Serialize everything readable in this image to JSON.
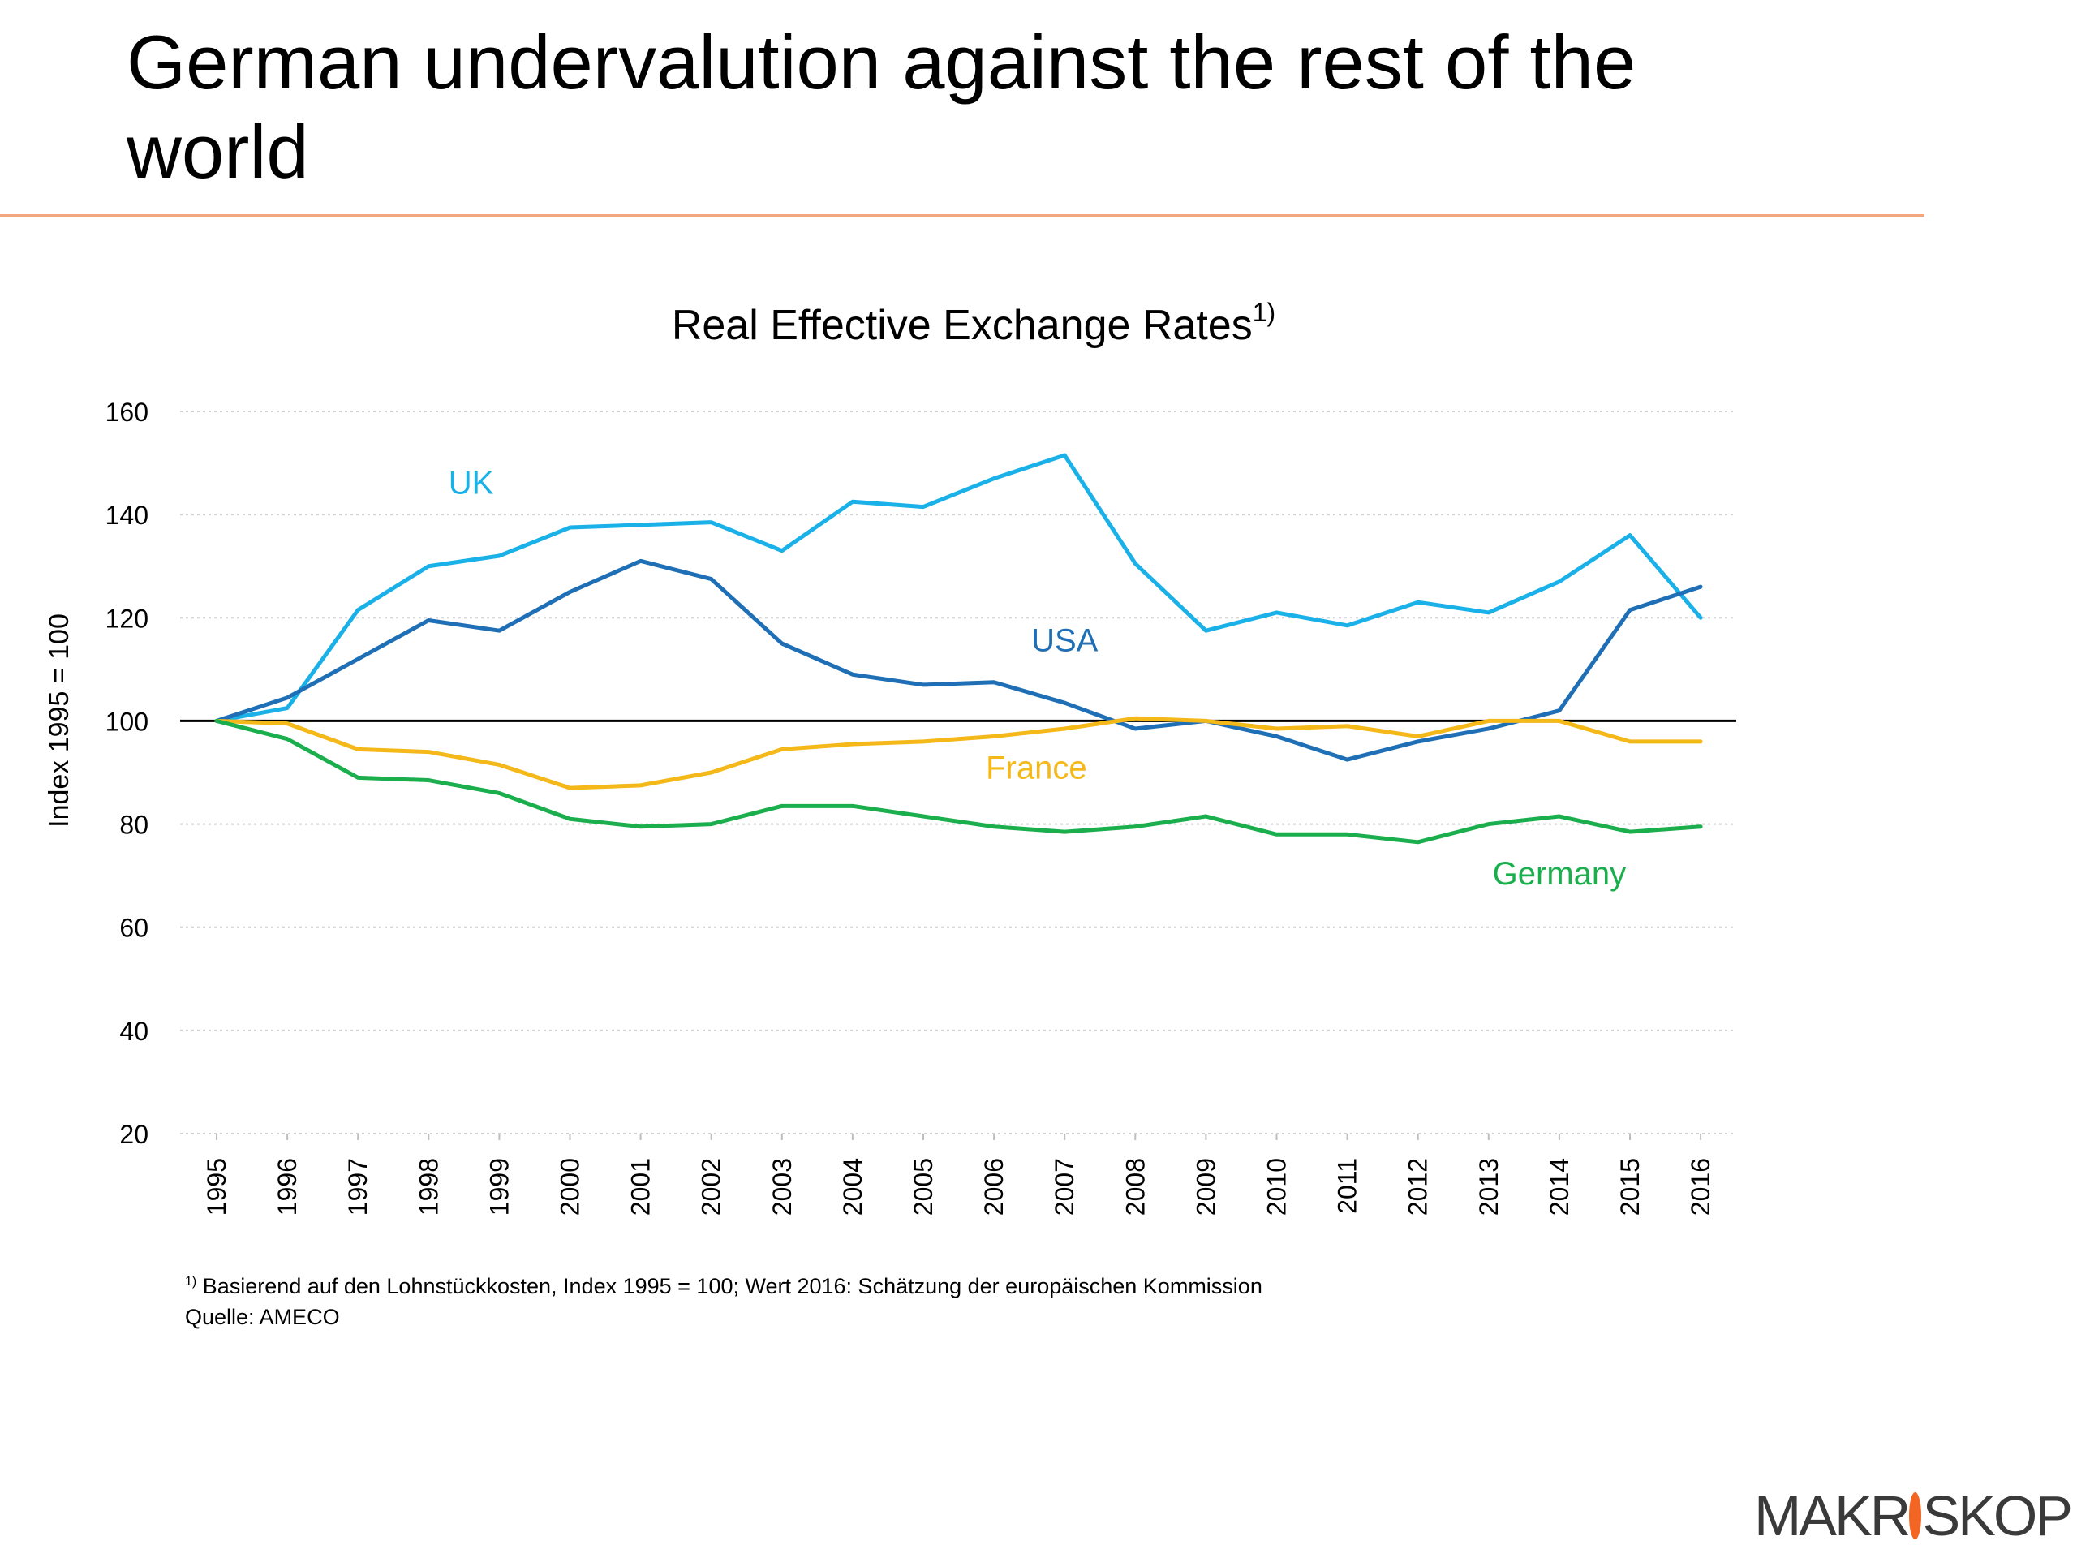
{
  "slide": {
    "title": "German undervalution against the rest of the world"
  },
  "chart_data": {
    "type": "line",
    "title": "Real Effective Exchange Rates",
    "title_superscript": "1)",
    "ylabel": "Index 1995 = 100",
    "xlabel": "",
    "ylim": [
      20,
      160
    ],
    "yticks": [
      "160",
      "140",
      "120",
      "100",
      "80",
      "60",
      "40",
      "20"
    ],
    "grid": true,
    "reference_line": 100,
    "categories": [
      "1995",
      "1996",
      "1997",
      "1998",
      "1999",
      "2000",
      "2001",
      "2002",
      "2003",
      "2004",
      "2005",
      "2006",
      "2007",
      "2008",
      "2009",
      "2010",
      "2011",
      "2012",
      "2013",
      "2014",
      "2015",
      "2016"
    ],
    "series": [
      {
        "name": "UK",
        "color": "#1AB0E8",
        "values": [
          100,
          102.5,
          121.5,
          130,
          132,
          137.5,
          138,
          138.5,
          133,
          142.5,
          141.5,
          147,
          151.5,
          130.5,
          117.5,
          121,
          118.5,
          123,
          121,
          127,
          136,
          120
        ]
      },
      {
        "name": "USA",
        "color": "#1F6FB6",
        "values": [
          100,
          104.5,
          112,
          119.5,
          117.5,
          125,
          131,
          127.5,
          115,
          109,
          107,
          107.5,
          103.5,
          98.5,
          100,
          97,
          92.5,
          96,
          98.5,
          102,
          121.5,
          126
        ]
      },
      {
        "name": "France",
        "color": "#F5B819",
        "values": [
          100,
          99.5,
          94.5,
          94,
          91.5,
          87,
          87.5,
          90,
          94.5,
          95.5,
          96,
          97,
          98.5,
          100.5,
          100,
          98.5,
          99,
          97,
          100,
          100,
          96,
          96
        ]
      },
      {
        "name": "Germany",
        "color": "#1BAE4D",
        "values": [
          100,
          96.5,
          89,
          88.5,
          86,
          81,
          79.5,
          80,
          83.5,
          83.5,
          81.5,
          79.5,
          78.5,
          79.5,
          81.5,
          78,
          78,
          76.5,
          80,
          81.5,
          78.5,
          79.5
        ]
      }
    ]
  },
  "footnote": {
    "marker": "1)",
    "line1": "Basierend auf den Lohnstückkosten, Index 1995 = 100; Wert 2016: Schätzung der europäischen Kommission",
    "line2": "Quelle: AMECO"
  },
  "logo": {
    "left": "MAKR",
    "right": "SKOP",
    "dot_color": "#F26522"
  }
}
